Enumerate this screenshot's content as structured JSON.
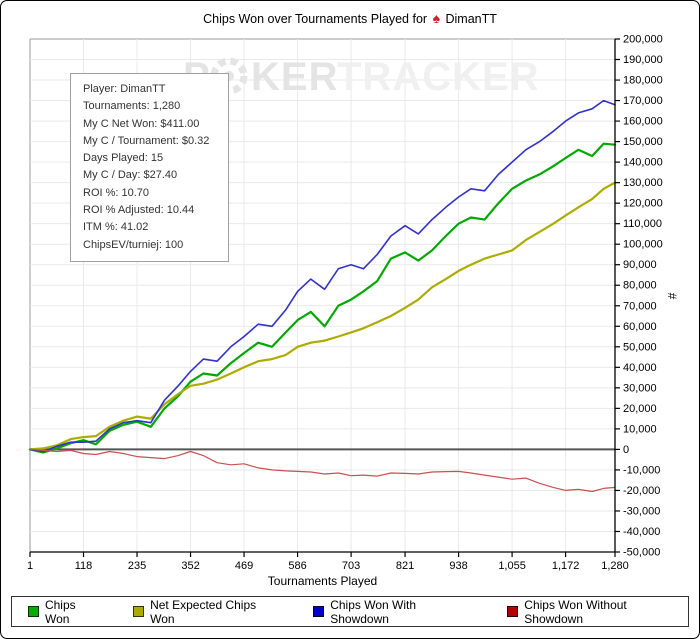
{
  "header": {
    "title_prefix": "Chips Won over Tournaments Played for",
    "player": "DimanTT",
    "title_icon": "red-spade"
  },
  "watermark": {
    "part1": "P",
    "chip_icon": "poker-chip",
    "part2": "KER",
    "part3": "TRACKER",
    "color_dark": "#e4e4e4",
    "color_light": "#f0f0f0"
  },
  "infobox": {
    "lines": [
      "Player: DimanTT",
      "Tournaments: 1,280",
      "My C Net Won: $411.00",
      "My C / Tournament: $0.32",
      "Days Played: 15",
      "My C / Day: $27.40",
      "ROI %: 10.70",
      "ROI % Adjusted: 10.44",
      "ITM %: 41.02",
      "ChipsEV/turniej: 100"
    ]
  },
  "chart_data": {
    "type": "line",
    "title": "Chips Won over Tournaments Played for DimanTT",
    "xlabel": "Tournaments Played",
    "ylabel": "#",
    "xlim": [
      1,
      1280
    ],
    "ylim": [
      -50000,
      200000
    ],
    "grid": true,
    "legend_position": "bottom",
    "x_ticks": [
      1,
      118,
      235,
      352,
      469,
      586,
      703,
      821,
      938,
      1055,
      1172,
      1280
    ],
    "x_tick_labels": [
      "1",
      "118",
      "235",
      "352",
      "469",
      "586",
      "703",
      "821",
      "938",
      "1,055",
      "1,172",
      "1,280"
    ],
    "y_ticks": [
      -50000,
      -40000,
      -30000,
      -20000,
      -10000,
      0,
      10000,
      20000,
      30000,
      40000,
      50000,
      60000,
      70000,
      80000,
      90000,
      100000,
      110000,
      120000,
      130000,
      140000,
      150000,
      160000,
      170000,
      180000,
      190000,
      200000
    ],
    "zero_line_color": "#555555",
    "grid_color": "#e9e9e9",
    "axis_color": "#000000",
    "x": [
      1,
      30,
      60,
      90,
      118,
      145,
      175,
      205,
      235,
      265,
      295,
      325,
      352,
      380,
      410,
      440,
      469,
      500,
      530,
      560,
      586,
      615,
      645,
      675,
      703,
      730,
      760,
      790,
      821,
      850,
      880,
      910,
      938,
      965,
      995,
      1025,
      1055,
      1085,
      1115,
      1145,
      1172,
      1200,
      1230,
      1255,
      1280
    ],
    "series": [
      {
        "name": "Chips Won",
        "color": "#00a800",
        "legend_fill": "#00ae00",
        "legend_border": "#003300",
        "width": 2.2,
        "values": [
          0,
          -1500,
          500,
          3000,
          4500,
          2500,
          9000,
          12000,
          13500,
          11000,
          20000,
          26000,
          33000,
          37000,
          36000,
          42000,
          47000,
          52000,
          50000,
          57000,
          63000,
          67000,
          60000,
          70000,
          73000,
          77000,
          82000,
          93000,
          96000,
          92000,
          97000,
          104000,
          110000,
          113000,
          112000,
          120000,
          127000,
          131000,
          134000,
          138000,
          142000,
          146000,
          143000,
          149000,
          148500
        ]
      },
      {
        "name": "Net Expected Chips Won",
        "color": "#acac00",
        "legend_fill": "#acac00",
        "legend_border": "#333300",
        "width": 2.2,
        "values": [
          0,
          500,
          2000,
          5000,
          6000,
          6500,
          11000,
          14000,
          16000,
          15000,
          22000,
          27000,
          31000,
          32000,
          34000,
          37000,
          40000,
          43000,
          44000,
          46000,
          50000,
          52000,
          53000,
          55000,
          57000,
          59000,
          62000,
          65000,
          69000,
          73000,
          79000,
          83000,
          87000,
          90000,
          93000,
          95000,
          97000,
          102000,
          106000,
          110000,
          114000,
          118000,
          122000,
          127000,
          130000
        ]
      },
      {
        "name": "Chips Won With Showdown",
        "color": "#3232c8",
        "legend_fill": "#0000c8",
        "legend_border": "#000033",
        "width": 1.6,
        "values": [
          0,
          -1000,
          1500,
          3500,
          3500,
          4000,
          10000,
          13000,
          14000,
          13000,
          24000,
          31000,
          38000,
          44000,
          43000,
          50000,
          55000,
          61000,
          60000,
          68000,
          77000,
          83000,
          78000,
          88000,
          90000,
          88000,
          95000,
          104000,
          109000,
          105000,
          112000,
          118000,
          123000,
          127000,
          126000,
          134000,
          140000,
          146000,
          150000,
          155000,
          160000,
          164000,
          166000,
          170000,
          168000
        ]
      },
      {
        "name": "Chips Won Without Showdown",
        "color": "#c85050",
        "legend_fill": "#b40000",
        "legend_border": "#330000",
        "width": 1.2,
        "values": [
          0,
          -500,
          -1000,
          -500,
          -2000,
          -2500,
          -1000,
          -2000,
          -3500,
          -4000,
          -4500,
          -3000,
          -1000,
          -3000,
          -6500,
          -7500,
          -7000,
          -9000,
          -10000,
          -10500,
          -10700,
          -11000,
          -12000,
          -11500,
          -12800,
          -12500,
          -13000,
          -11500,
          -11700,
          -12000,
          -11000,
          -10800,
          -10700,
          -11500,
          -12500,
          -13500,
          -14500,
          -14000,
          -16500,
          -18500,
          -20000,
          -19500,
          -20500,
          -19000,
          -18500
        ]
      }
    ]
  }
}
